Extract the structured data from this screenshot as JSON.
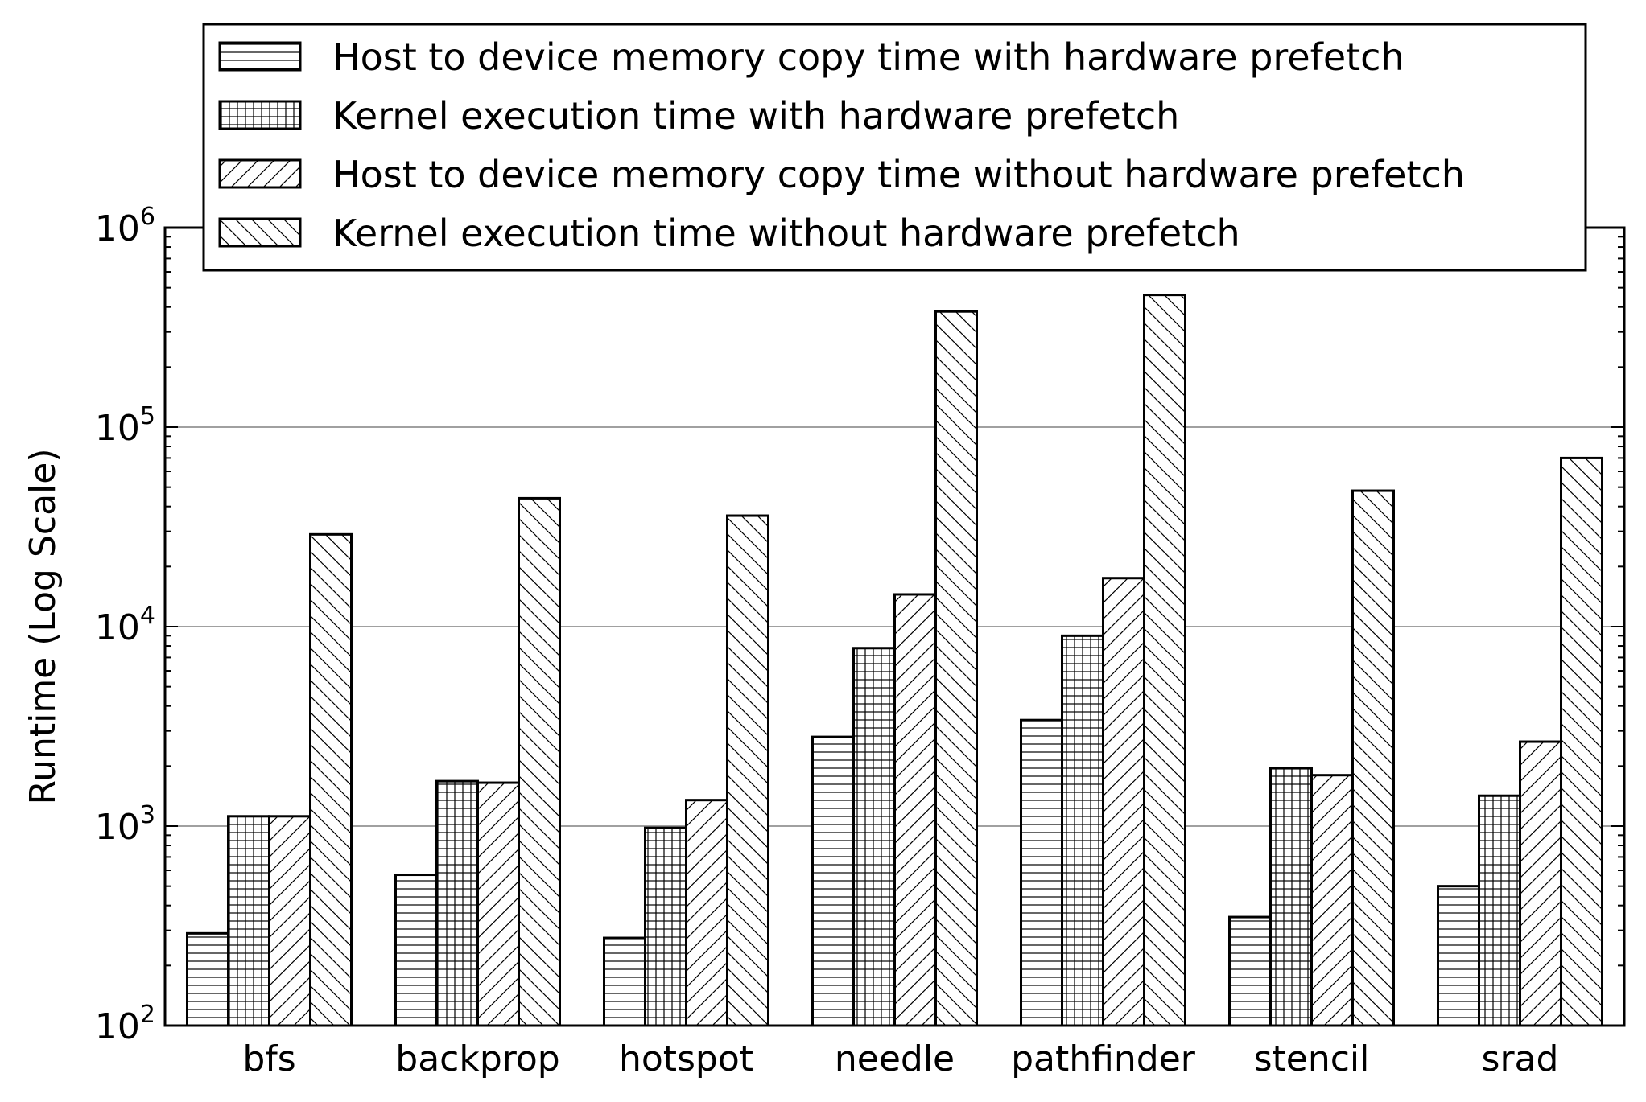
{
  "chart_data": {
    "type": "bar",
    "ylabel": "Runtime (Log Scale)",
    "yscale": "log",
    "ylim": [
      100,
      1000000
    ],
    "ytick_labels": [
      {
        "base": "10",
        "exp": "2",
        "value": 100
      },
      {
        "base": "10",
        "exp": "3",
        "value": 1000
      },
      {
        "base": "10",
        "exp": "4",
        "value": 10000
      },
      {
        "base": "10",
        "exp": "5",
        "value": 100000
      },
      {
        "base": "10",
        "exp": "6",
        "value": 1000000
      }
    ],
    "grid": "horizontal major",
    "legend_position": "top",
    "categories": [
      "bfs",
      "backprop",
      "hotspot",
      "needle",
      "pathfinder",
      "stencil",
      "srad"
    ],
    "series": [
      {
        "name": "Host to device memory copy time with hardware prefetch",
        "hatch": "horizontal",
        "values": [
          290,
          570,
          275,
          2800,
          3400,
          350,
          500
        ]
      },
      {
        "name": "Kernel execution time with hardware prefetch",
        "hatch": "grid",
        "values": [
          1120,
          1680,
          980,
          7800,
          9000,
          1950,
          1420
        ]
      },
      {
        "name": "Host to device memory copy time without hardware prefetch",
        "hatch": "forward-diagonal",
        "values": [
          1120,
          1650,
          1350,
          14500,
          17500,
          1800,
          2650
        ]
      },
      {
        "name": "Kernel execution time without hardware prefetch",
        "hatch": "back-diagonal",
        "values": [
          29000,
          44000,
          36000,
          380000,
          460000,
          48000,
          70000
        ]
      }
    ],
    "colors": {
      "bar_fill": "#ffffff",
      "bar_edge": "#000000",
      "grid": "#808080",
      "axes": "#000000"
    }
  }
}
